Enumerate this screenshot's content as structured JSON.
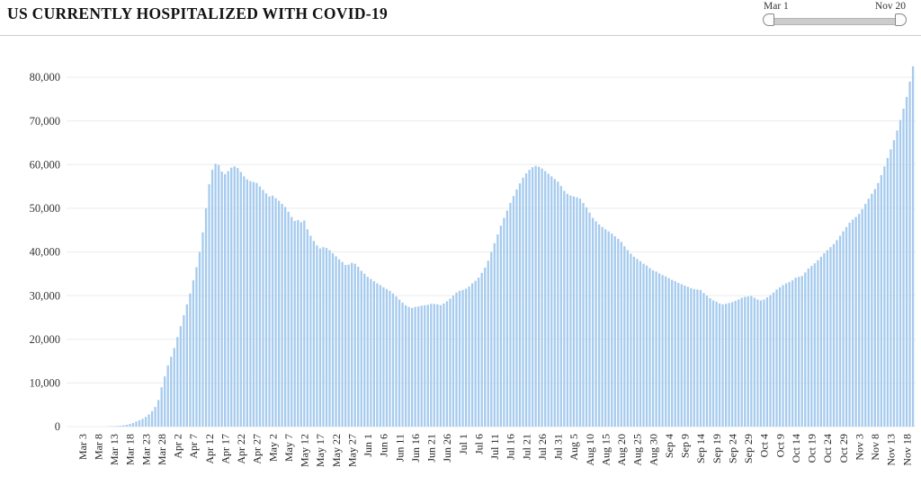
{
  "header": {
    "title": "US CURRENTLY HOSPITALIZED WITH COVID-19"
  },
  "slider": {
    "start_label": "Mar 1",
    "end_label": "Nov 20"
  },
  "chart_data": {
    "type": "bar",
    "title": "US CURRENTLY HOSPITALIZED WITH COVID-19",
    "xlabel": "",
    "ylabel": "",
    "x_range": [
      "Mar 1",
      "Nov 20"
    ],
    "ylim": [
      0,
      80000
    ],
    "grid": true,
    "bar_color": "#a6cbee",
    "grid_color": "#ececec",
    "first_tick_index": 2,
    "tick_step": 5,
    "y_ticks": [
      0,
      10000,
      20000,
      30000,
      40000,
      50000,
      60000,
      70000,
      80000
    ],
    "y_tick_labels": [
      "0",
      "10,000",
      "20,000",
      "30,000",
      "40,000",
      "50,000",
      "60,000",
      "70,000",
      "80,000"
    ],
    "x_tick_labels": [
      "Mar 3",
      "Mar 8",
      "Mar 13",
      "Mar 18",
      "Mar 23",
      "Mar 28",
      "Apr 2",
      "Apr 7",
      "Apr 12",
      "Apr 17",
      "Apr 22",
      "Apr 27",
      "May 2",
      "May 7",
      "May 12",
      "May 17",
      "May 22",
      "May 27",
      "Jun 1",
      "Jun 6",
      "Jun 11",
      "Jun 16",
      "Jun 21",
      "Jun 26",
      "Jul 1",
      "Jul 6",
      "Jul 11",
      "Jul 16",
      "Jul 21",
      "Jul 26",
      "Jul 31",
      "Aug 5",
      "Aug 10",
      "Aug 15",
      "Aug 20",
      "Aug 25",
      "Aug 30",
      "Sep 4",
      "Sep 9",
      "Sep 14",
      "Sep 19",
      "Sep 24",
      "Sep 29",
      "Oct 4",
      "Oct 9",
      "Oct 14",
      "Oct 19",
      "Oct 24",
      "Oct 29",
      "Nov 3",
      "Nov 8",
      "Nov 13",
      "Nov 18"
    ],
    "values": [
      0,
      0,
      0,
      0,
      0,
      0,
      0,
      0,
      0,
      0,
      50,
      80,
      110,
      150,
      200,
      300,
      410,
      615,
      820,
      1160,
      1440,
      1780,
      2200,
      2800,
      3550,
      4500,
      6100,
      9000,
      11500,
      14000,
      16000,
      18000,
      20500,
      23000,
      25500,
      28000,
      30500,
      33500,
      36500,
      40000,
      44500,
      50000,
      55500,
      58800,
      60200,
      59900,
      58400,
      57800,
      58500,
      59300,
      59600,
      59200,
      58300,
      57300,
      56600,
      56200,
      56000,
      55800,
      55000,
      54200,
      53400,
      52700,
      52900,
      52300,
      51700,
      51000,
      50300,
      49200,
      48000,
      47100,
      47300,
      46800,
      47200,
      45200,
      43700,
      42500,
      41500,
      40800,
      41100,
      40900,
      40400,
      39700,
      39000,
      38300,
      37700,
      37000,
      37100,
      37500,
      37300,
      36600,
      35700,
      35000,
      34300,
      33800,
      33300,
      32800,
      32400,
      31900,
      31500,
      31100,
      30500,
      29800,
      29100,
      28400,
      27800,
      27400,
      27200,
      27400,
      27500,
      27700,
      27800,
      27900,
      28100,
      28100,
      28000,
      27800,
      28200,
      28700,
      29300,
      30000,
      30700,
      31100,
      31300,
      31600,
      32100,
      32800,
      33400,
      34100,
      35200,
      36400,
      38000,
      40000,
      42000,
      44000,
      46000,
      47800,
      49500,
      51200,
      52800,
      54300,
      55700,
      57000,
      58000,
      58800,
      59400,
      59700,
      59500,
      59100,
      58500,
      57900,
      57300,
      56700,
      56100,
      55100,
      54000,
      53300,
      52900,
      52700,
      52500,
      52200,
      51200,
      50200,
      49000,
      47800,
      47000,
      46300,
      45700,
      45200,
      44700,
      44200,
      43600,
      43000,
      42300,
      41300,
      40400,
      39600,
      38900,
      38400,
      37900,
      37300,
      36900,
      36300,
      35800,
      35500,
      35100,
      34700,
      34400,
      34000,
      33600,
      33300,
      32900,
      32600,
      32300,
      32000,
      31700,
      31500,
      31400,
      31300,
      30600,
      30000,
      29400,
      28900,
      28600,
      28200,
      28000,
      28100,
      28300,
      28500,
      28800,
      29100,
      29500,
      29700,
      29800,
      29900,
      29500,
      29100,
      28900,
      29100,
      29600,
      30100,
      30700,
      31400,
      31900,
      32400,
      32800,
      33100,
      33500,
      34100,
      34300,
      34500,
      35300,
      36200,
      36800,
      37400,
      38100,
      38900,
      39700,
      40400,
      41100,
      41800,
      42700,
      43700,
      44700,
      45700,
      46700,
      47400,
      48000,
      48700,
      49800,
      51000,
      52200,
      53300,
      54400,
      55800,
      57600,
      59600,
      61500,
      63500,
      65600,
      67800,
      70200,
      72800,
      75500,
      79000,
      82500
    ]
  }
}
